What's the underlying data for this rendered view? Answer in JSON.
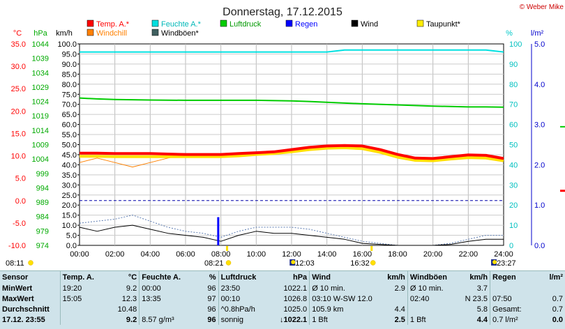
{
  "header": {
    "title": "Donnerstag, 17.12.2015",
    "copyright": "© Weber Mike"
  },
  "legend": [
    {
      "label": "Temp. A.*",
      "color": "#ff0000"
    },
    {
      "label": "Feuchte A.*",
      "color": "#00e0e0"
    },
    {
      "label": "Luftdruck",
      "color": "#00cc00"
    },
    {
      "label": "Regen",
      "color": "#0000ff"
    },
    {
      "label": "Wind",
      "color": "#000000"
    },
    {
      "label": "Taupunkt*",
      "color": "#ffee00"
    },
    {
      "label": "Windchill",
      "color": "#ff8000"
    },
    {
      "label": "Windböen*",
      "color": "#406060"
    }
  ],
  "axes": {
    "temp_unit": "°C",
    "press_unit": "hPa",
    "wind_unit": "km/h",
    "hum_unit": "%",
    "rain_unit": "l/m²",
    "temp_ticks": [
      "35.0",
      "30.0",
      "25.0",
      "20.0",
      "15.0",
      "10.0",
      "5.0",
      "0.0",
      "-5.0",
      "-10.0"
    ],
    "press_ticks": [
      "1044",
      "1039",
      "1034",
      "1029",
      "1024",
      "1019",
      "1014",
      "1009",
      "1004",
      "999",
      "994",
      "989",
      "984",
      "979",
      "974"
    ],
    "wind_ticks": [
      "100.0",
      "95.0",
      "90.0",
      "85.0",
      "80.0",
      "75.0",
      "70.0",
      "65.0",
      "60.0",
      "55.0",
      "50.0",
      "45.0",
      "40.0",
      "35.0",
      "30.0",
      "25.0",
      "20.0",
      "15.0",
      "10.0",
      "5.0",
      "0.0"
    ],
    "hum_ticks": [
      "100",
      "90",
      "80",
      "70",
      "60",
      "50",
      "40",
      "30",
      "20",
      "10",
      "0"
    ],
    "rain_ticks": [
      "5.0",
      "4.0",
      "3.0",
      "2.0",
      "1.0",
      "0.0"
    ],
    "time_ticks": [
      "00:00",
      "02:00",
      "04:00",
      "06:00",
      "08:00",
      "10:00",
      "12:00",
      "14:00",
      "16:00",
      "18:00",
      "20:00",
      "22:00",
      "24:00"
    ]
  },
  "sun": {
    "sunrise_prev": "08:11",
    "sunrise": "08:21",
    "moonrise": "12:03",
    "sunset": "16:32",
    "moonset": "23:27"
  },
  "chart_data": {
    "type": "line",
    "title": "Donnerstag, 17.12.2015",
    "x_range": [
      "00:00",
      "24:00"
    ],
    "series": [
      {
        "name": "Temp. A.*",
        "axis": "°C",
        "x": [
          0,
          1,
          2,
          3,
          4,
          5,
          6,
          7,
          8,
          9,
          10,
          11,
          12,
          13,
          14,
          15,
          16,
          17,
          18,
          19,
          20,
          21,
          22,
          23,
          24
        ],
        "values": [
          10.6,
          10.6,
          10.5,
          10.5,
          10.5,
          10.4,
          10.3,
          10.3,
          10.3,
          10.5,
          10.7,
          10.9,
          11.4,
          11.9,
          12.2,
          12.3,
          12.2,
          11.4,
          10.3,
          9.5,
          9.4,
          9.8,
          10.2,
          10.1,
          9.4
        ]
      },
      {
        "name": "Taupunkt*",
        "axis": "°C",
        "x": [
          0,
          1,
          2,
          3,
          4,
          5,
          6,
          7,
          8,
          9,
          10,
          11,
          12,
          13,
          14,
          15,
          16,
          17,
          18,
          19,
          20,
          21,
          22,
          23,
          24
        ],
        "values": [
          9.9,
          9.9,
          9.8,
          9.8,
          9.8,
          9.8,
          9.8,
          9.8,
          9.8,
          10.0,
          10.3,
          10.5,
          10.9,
          11.4,
          11.7,
          11.8,
          11.6,
          10.8,
          9.7,
          9.0,
          8.9,
          9.3,
          9.6,
          9.5,
          8.9
        ]
      },
      {
        "name": "Windchill",
        "axis": "°C",
        "x": [
          0,
          1,
          2,
          3,
          4,
          5,
          6,
          7,
          8,
          9,
          10,
          11,
          12,
          13,
          14,
          15,
          16,
          17,
          18,
          19,
          20,
          21,
          22,
          23,
          24
        ],
        "values": [
          8.5,
          9.5,
          8.5,
          7.5,
          8.5,
          9.5,
          10.3,
          10.3,
          10.3,
          10.5,
          10.7,
          10.9,
          11.3,
          11.8,
          12.2,
          12.3,
          12.2,
          11.4,
          10.3,
          9.5,
          9.4,
          9.8,
          10.2,
          10.1,
          9.4
        ]
      },
      {
        "name": "Feuchte A.*",
        "axis": "%",
        "x": [
          0,
          4,
          8,
          12,
          14,
          15,
          16,
          17,
          20,
          23,
          24
        ],
        "values": [
          96,
          96,
          96,
          96,
          96,
          97,
          97,
          97,
          97,
          97,
          96
        ]
      },
      {
        "name": "Luftdruck",
        "axis": "hPa",
        "x": [
          0,
          1,
          2,
          4,
          6,
          8,
          10,
          12,
          13,
          14,
          16,
          18,
          20,
          22,
          23,
          24
        ],
        "values": [
          1025.2,
          1024.9,
          1024.7,
          1024.5,
          1024.4,
          1024.4,
          1024.4,
          1024.2,
          1024.0,
          1023.7,
          1023.2,
          1022.8,
          1022.4,
          1022.1,
          1022.1,
          1022.0
        ]
      },
      {
        "name": "Wind",
        "axis": "km/h",
        "x": [
          0,
          1,
          2,
          3,
          4,
          5,
          6,
          7,
          8,
          9,
          10,
          11,
          12,
          13,
          14,
          15,
          16,
          17,
          18,
          19,
          20,
          21,
          22,
          23,
          24
        ],
        "values": [
          9,
          7,
          9,
          10,
          8,
          6,
          5,
          4,
          2,
          5,
          7,
          6,
          6,
          5,
          4,
          3,
          1,
          0.5,
          0,
          0,
          0,
          0.5,
          2,
          3,
          3
        ]
      },
      {
        "name": "Windböen*",
        "axis": "km/h",
        "x": [
          0,
          1,
          2,
          3,
          4,
          5,
          6,
          7,
          8,
          9,
          10,
          11,
          12,
          13,
          14,
          15,
          16,
          17,
          18,
          19,
          20,
          21,
          22,
          23,
          24
        ],
        "values": [
          11,
          12,
          13,
          15,
          12,
          9,
          7,
          6,
          4,
          7,
          9,
          9,
          9,
          8,
          6,
          4,
          2,
          1,
          0,
          0,
          0,
          1,
          3,
          5,
          5
        ]
      },
      {
        "name": "Regen",
        "axis": "l/m²",
        "x": [
          7.85
        ],
        "values": [
          0.7
        ]
      }
    ],
    "ylim_temp": [
      -10,
      35
    ],
    "ylim_press": [
      974,
      1044
    ],
    "ylim_wind": [
      0,
      100
    ],
    "ylim_hum": [
      0,
      100
    ],
    "ylim_rain": [
      0,
      5
    ]
  },
  "table": {
    "header": [
      "Sensor",
      "Temp. A.",
      "°C",
      "Feuchte A.",
      "%",
      "Luftdruck",
      "hPa",
      "Wind",
      "km/h",
      "Windböen",
      "km/h",
      "Regen",
      "l/m²"
    ],
    "rows": [
      [
        "MinWert",
        "19:20",
        "9.2",
        "00:00",
        "96",
        "23:50",
        "1022.1",
        "Ø 10 min.",
        "2.9",
        "Ø 10 min.",
        "3.7",
        "",
        ""
      ],
      [
        "MaxWert",
        "15:05",
        "12.3",
        "13:35",
        "97",
        "00:10",
        "1026.8",
        "03:10    W-SW 12.0",
        "",
        "02:40",
        "N 23.5",
        "07:50",
        "0.7"
      ],
      [
        "Durchschnitt",
        "",
        "10.48",
        "",
        "96",
        "^0.8hPa/h",
        "1025.0",
        "105.9 km",
        "4.4",
        "",
        "5.8",
        "Gesamt:",
        "0.7"
      ],
      [
        "17.12. 23:55",
        "",
        "9.2",
        "8.57 g/m³",
        "96",
        "sonnig",
        "↓1022.1",
        "1 Bft",
        "2.5",
        "1 Bft",
        "4.4",
        "0.7 l/m²",
        "0.0"
      ]
    ]
  }
}
